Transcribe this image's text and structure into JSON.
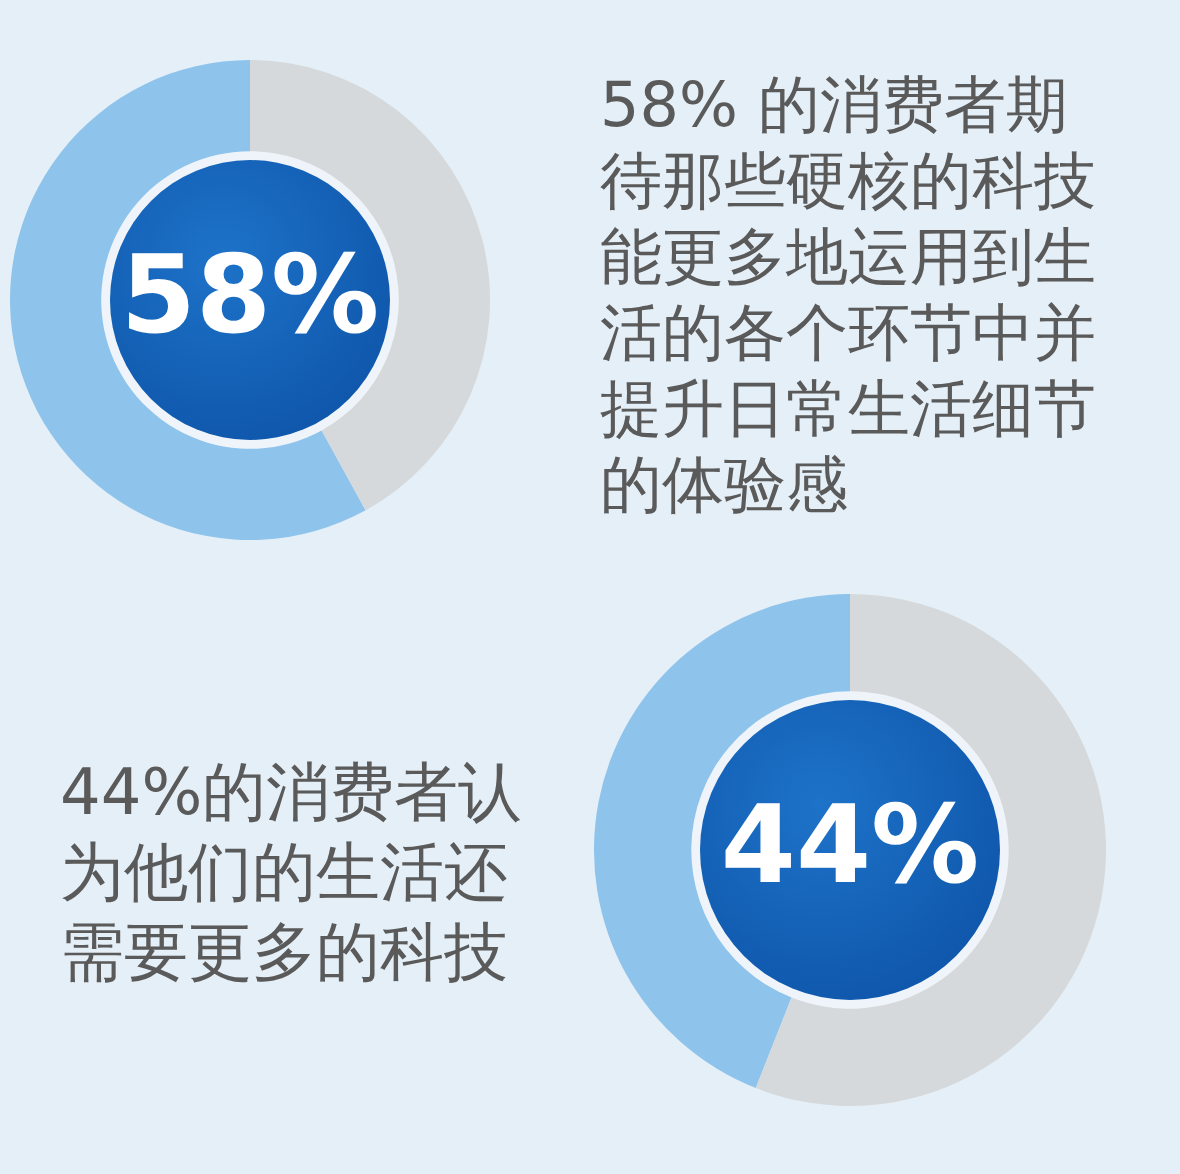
{
  "chart_data": [
    {
      "type": "donut",
      "title": "58% 的消费者期待那些硬核的科技能更多地运用到生活的各个环节中并提升日常生活细节的体验感",
      "categories": [
        null,
        null
      ],
      "values": [
        58,
        42
      ],
      "colors": [
        "#8ec3ec",
        "#d6d9db"
      ],
      "value_labels": [
        "58%",
        null
      ]
    },
    {
      "type": "donut",
      "title": "44%的消费者认为他们的生活还需要更多的科技",
      "categories": [
        null,
        null
      ],
      "values": [
        44,
        56
      ],
      "colors": [
        "#8ec3ec",
        "#d6d9db"
      ],
      "value_labels": [
        "44%",
        null
      ]
    }
  ]
}
